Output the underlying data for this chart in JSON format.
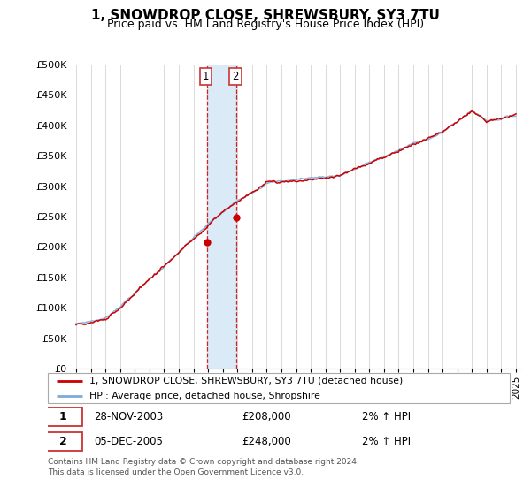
{
  "title": "1, SNOWDROP CLOSE, SHREWSBURY, SY3 7TU",
  "subtitle": "Price paid vs. HM Land Registry's House Price Index (HPI)",
  "legend_line1": "1, SNOWDROP CLOSE, SHREWSBURY, SY3 7TU (detached house)",
  "legend_line2": "HPI: Average price, detached house, Shropshire",
  "annotation1_date": "28-NOV-2003",
  "annotation1_price": "£208,000",
  "annotation1_hpi": "2% ↑ HPI",
  "annotation2_date": "05-DEC-2005",
  "annotation2_price": "£248,000",
  "annotation2_hpi": "2% ↑ HPI",
  "footer": "Contains HM Land Registry data © Crown copyright and database right 2024.\nThis data is licensed under the Open Government Licence v3.0.",
  "house_color": "#cc0000",
  "hpi_color": "#7aaddb",
  "highlight_color": "#daeaf7",
  "ylim": [
    0,
    500000
  ],
  "yticks": [
    0,
    50000,
    100000,
    150000,
    200000,
    250000,
    300000,
    350000,
    400000,
    450000,
    500000
  ],
  "sale1_x": 2003.91,
  "sale1_y": 208000,
  "sale2_x": 2005.92,
  "sale2_y": 248000,
  "highlight_x1": 2003.91,
  "highlight_x2": 2005.92,
  "xlim_left": 1994.7,
  "xlim_right": 2025.3
}
